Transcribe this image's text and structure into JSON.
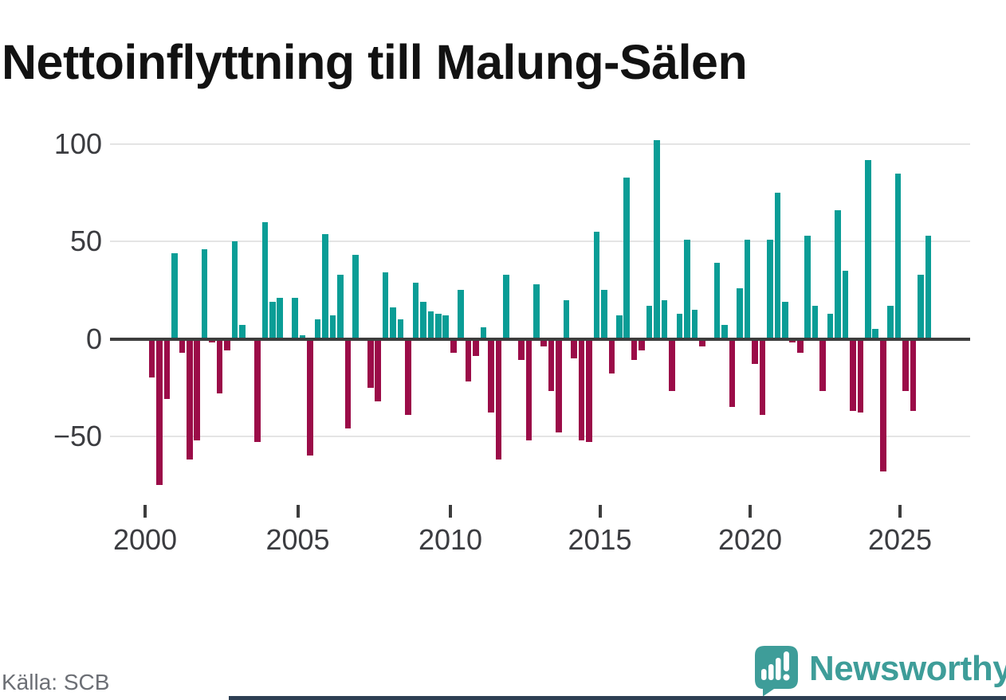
{
  "title": "Nettoinflyttning till Malung-Sälen",
  "source": "Källa: SCB",
  "logo": {
    "brand": "Newsworthy",
    "icon": "newsworthy-chart-bubble-icon"
  },
  "colors": {
    "positive": "#0a9d96",
    "negative": "#9b0c48",
    "gridline": "#e4e4e4",
    "zero_axis": "#3d3d3d",
    "axis_label": "#3b3c40",
    "title": "#121212",
    "source_text": "#6c6f75",
    "brand_teal": "#3e9d99",
    "footer_bar": "#2e3f53"
  },
  "chart_data": {
    "type": "bar",
    "title": "Nettoinflyttning till Malung-Sälen",
    "frequency": "quarterly",
    "start": "2000Q1",
    "end": "2025Q4",
    "values": [
      -20,
      -75,
      -31,
      44,
      -7,
      -62,
      -52,
      46,
      -2,
      -28,
      -6,
      50,
      7,
      0,
      -53,
      60,
      19,
      21,
      0,
      21,
      2,
      -60,
      10,
      54,
      12,
      33,
      -46,
      43,
      0,
      -25,
      -32,
      34,
      16,
      10,
      -39,
      29,
      19,
      14,
      13,
      12,
      -7,
      25,
      -22,
      -9,
      6,
      -38,
      -62,
      33,
      0,
      -11,
      -52,
      28,
      -4,
      -27,
      -48,
      20,
      -10,
      -52,
      -53,
      55,
      25,
      -18,
      12,
      83,
      -11,
      -6,
      17,
      102,
      20,
      -27,
      13,
      51,
      15,
      -4,
      0,
      39,
      7,
      -35,
      26,
      51,
      -13,
      -39,
      51,
      75,
      19,
      -2,
      -7,
      53,
      17,
      -27,
      13,
      66,
      35,
      -37,
      -38,
      92,
      5,
      -68,
      17,
      85,
      -27,
      -37,
      33,
      53
    ],
    "xtick_labels": [
      "2000",
      "2005",
      "2010",
      "2015",
      "2020",
      "2025"
    ],
    "ytick_labels": [
      "100",
      "50",
      "0",
      "−50"
    ],
    "ytick_values": [
      100,
      50,
      0,
      -50
    ],
    "ylim": [
      -80,
      110
    ],
    "grid": "horizontal",
    "legend": "none",
    "positive_color": "#0a9d96",
    "negative_color": "#9b0c48"
  }
}
